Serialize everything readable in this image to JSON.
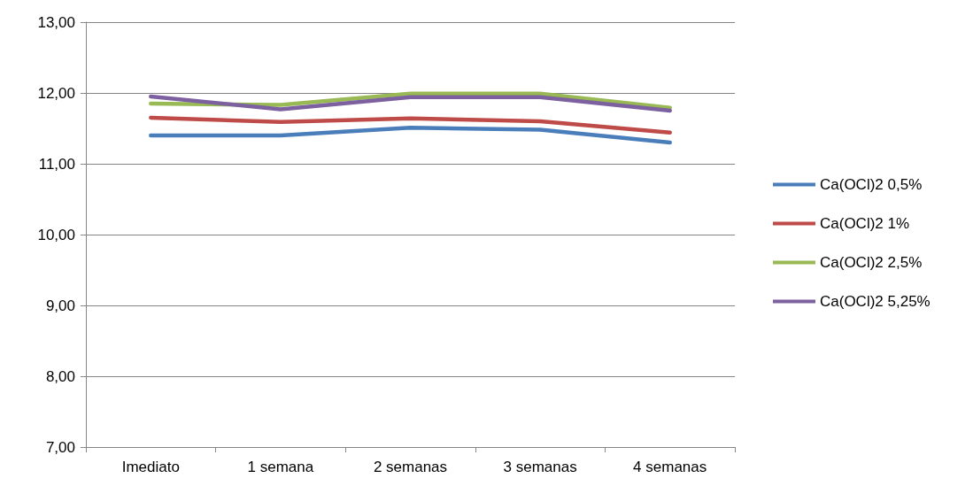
{
  "chart_data": {
    "type": "line",
    "categories": [
      "Imediato",
      "1 semana",
      "2 semanas",
      "3 semanas",
      "4 semanas"
    ],
    "series": [
      {
        "name": "Ca(OCl)2 0,5%",
        "color": "#4a7ebb",
        "values": [
          11.4,
          11.4,
          11.51,
          11.48,
          11.3
        ]
      },
      {
        "name": "Ca(OCl)2 1%",
        "color": "#be4b48",
        "values": [
          11.65,
          11.59,
          11.64,
          11.6,
          11.44
        ]
      },
      {
        "name": "Ca(OCl)2 2,5%",
        "color": "#98b954",
        "values": [
          11.85,
          11.83,
          11.99,
          11.99,
          11.79
        ]
      },
      {
        "name": "Ca(OCl)2 5,25%",
        "color": "#7d60a0",
        "values": [
          11.95,
          11.77,
          11.94,
          11.94,
          11.75
        ]
      }
    ],
    "ylim": [
      7,
      13
    ],
    "yticks": [
      {
        "value": 7,
        "label": "7,00"
      },
      {
        "value": 8,
        "label": "8,00"
      },
      {
        "value": 9,
        "label": "9,00"
      },
      {
        "value": 10,
        "label": "10,00"
      },
      {
        "value": 11,
        "label": "11,00"
      },
      {
        "value": 12,
        "label": "12,00"
      },
      {
        "value": 13,
        "label": "13,00"
      }
    ],
    "grid": "y",
    "legend": "right",
    "marker": "none",
    "line_style": "solid"
  }
}
